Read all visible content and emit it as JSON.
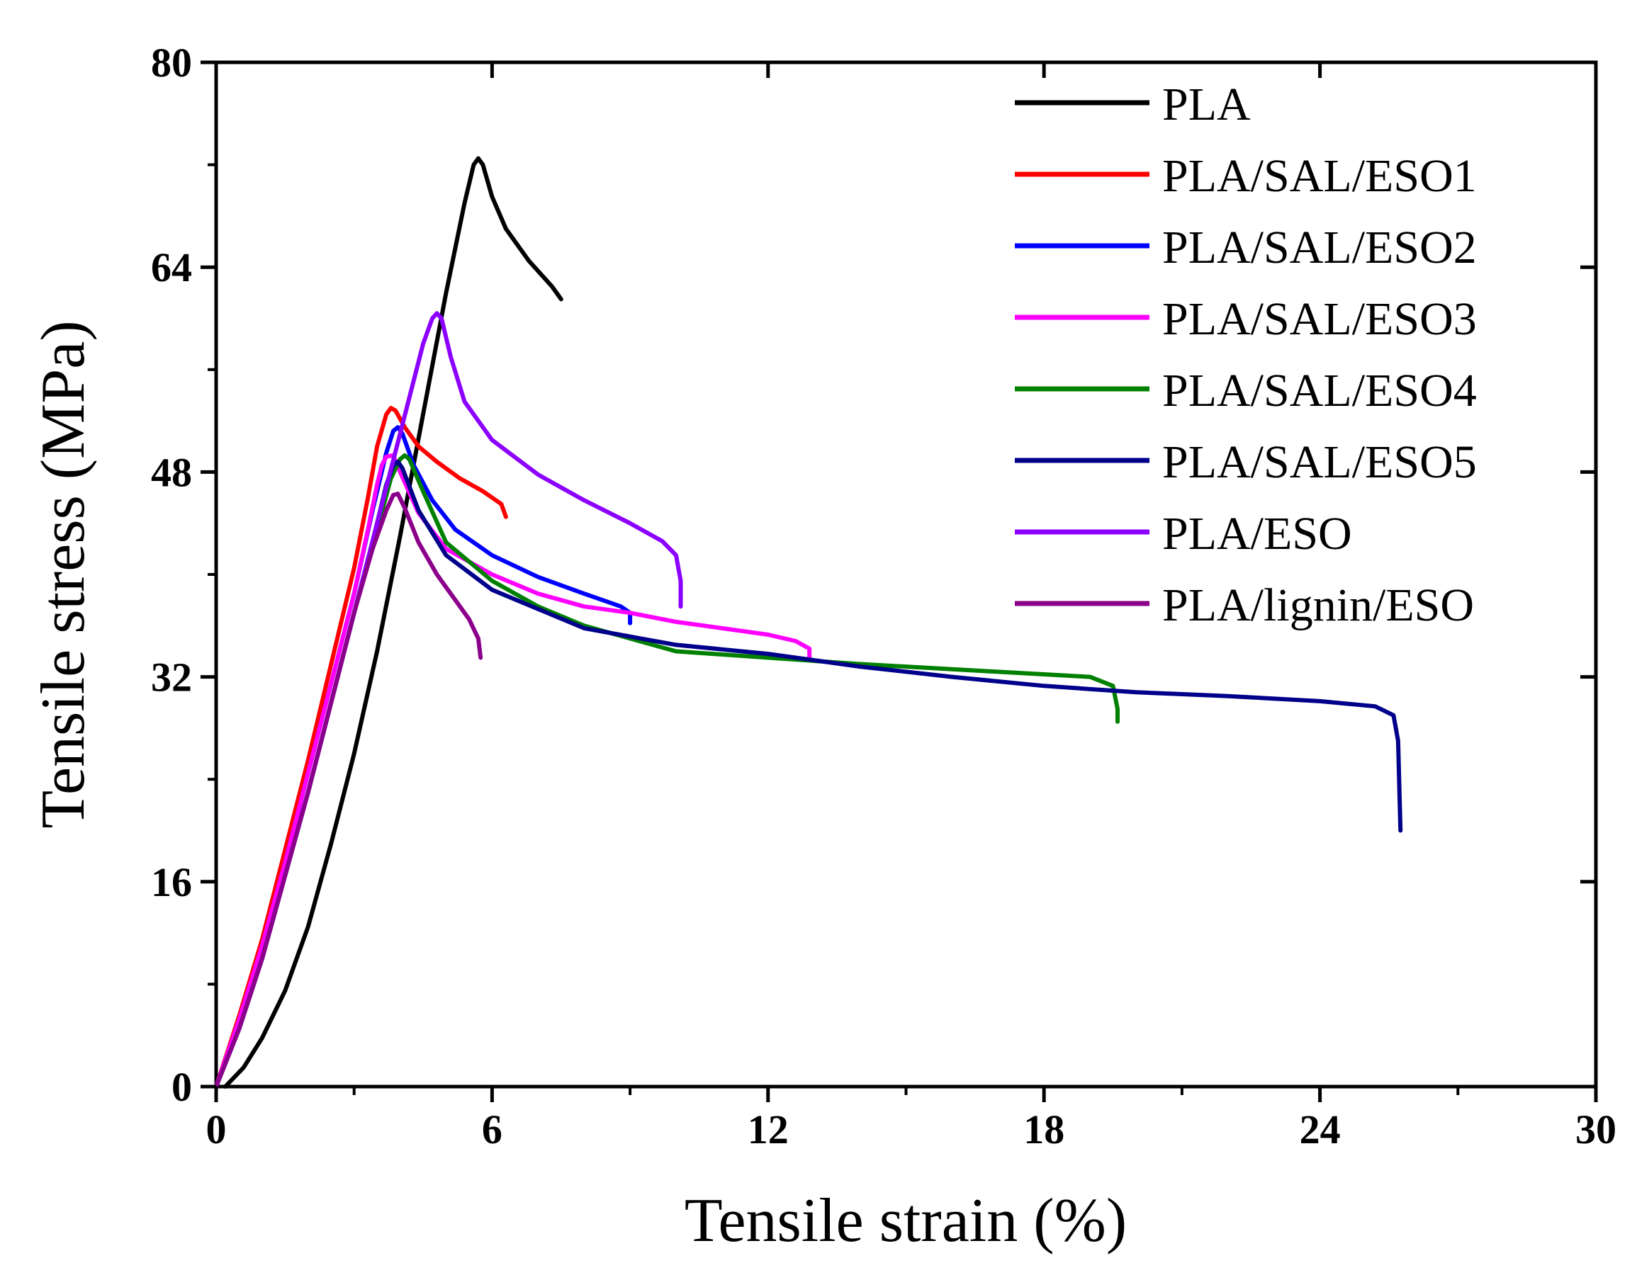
{
  "chart_data": {
    "type": "line",
    "title": "",
    "xlabel": "Tensile strain (%)",
    "ylabel": "Tensile stress (MPa)",
    "xlim": [
      0,
      30
    ],
    "ylim": [
      0,
      80
    ],
    "x_ticks": [
      0,
      6,
      12,
      18,
      24,
      30
    ],
    "y_ticks": [
      0,
      16,
      32,
      48,
      64,
      80
    ],
    "x_tick_labels": [
      "0",
      "6",
      "12",
      "18",
      "24",
      "30"
    ],
    "y_tick_labels": [
      "0",
      "16",
      "32",
      "48",
      "64",
      "80"
    ],
    "grid": false,
    "legend_position": "top-right",
    "series": [
      {
        "name": "PLA",
        "color": "#000000",
        "points": [
          [
            0.2,
            0
          ],
          [
            0.6,
            1.5
          ],
          [
            1.0,
            3.8
          ],
          [
            1.5,
            7.5
          ],
          [
            2.0,
            12.5
          ],
          [
            2.5,
            19
          ],
          [
            3.0,
            26
          ],
          [
            3.5,
            34
          ],
          [
            4.0,
            43
          ],
          [
            4.5,
            52.5
          ],
          [
            5.0,
            62
          ],
          [
            5.4,
            69
          ],
          [
            5.6,
            72
          ],
          [
            5.7,
            72.5
          ],
          [
            5.8,
            72
          ],
          [
            6.0,
            69.5
          ],
          [
            6.3,
            67
          ],
          [
            6.8,
            64.5
          ],
          [
            7.3,
            62.5
          ],
          [
            7.5,
            61.5
          ]
        ]
      },
      {
        "name": "PLA/SAL/ESO1",
        "color": "#ff0000",
        "points": [
          [
            0,
            0
          ],
          [
            0.5,
            5.5
          ],
          [
            1.0,
            11.5
          ],
          [
            1.5,
            18.5
          ],
          [
            2.0,
            25.5
          ],
          [
            2.5,
            33
          ],
          [
            3.0,
            40.5
          ],
          [
            3.3,
            46
          ],
          [
            3.5,
            50
          ],
          [
            3.7,
            52.5
          ],
          [
            3.8,
            53
          ],
          [
            3.9,
            52.8
          ],
          [
            4.1,
            51.5
          ],
          [
            4.4,
            50
          ],
          [
            4.8,
            48.8
          ],
          [
            5.3,
            47.5
          ],
          [
            5.8,
            46.5
          ],
          [
            6.2,
            45.5
          ],
          [
            6.3,
            44.5
          ]
        ]
      },
      {
        "name": "PLA/SAL/ESO2",
        "color": "#0000ff",
        "points": [
          [
            0,
            0
          ],
          [
            0.5,
            5
          ],
          [
            1.0,
            11
          ],
          [
            1.5,
            17.5
          ],
          [
            2.0,
            24.5
          ],
          [
            2.5,
            31.5
          ],
          [
            3.0,
            38.5
          ],
          [
            3.4,
            45
          ],
          [
            3.7,
            49.5
          ],
          [
            3.85,
            51.2
          ],
          [
            3.95,
            51.5
          ],
          [
            4.05,
            51
          ],
          [
            4.3,
            48.5
          ],
          [
            4.7,
            45.8
          ],
          [
            5.2,
            43.5
          ],
          [
            6.0,
            41.5
          ],
          [
            7.0,
            39.8
          ],
          [
            8.0,
            38.5
          ],
          [
            8.8,
            37.5
          ],
          [
            9.0,
            37
          ],
          [
            9.0,
            36.2
          ]
        ]
      },
      {
        "name": "PLA/SAL/ESO3",
        "color": "#ff00ff",
        "points": [
          [
            0,
            0
          ],
          [
            0.5,
            5.2
          ],
          [
            1.0,
            11
          ],
          [
            1.5,
            17.5
          ],
          [
            2.0,
            24.5
          ],
          [
            2.5,
            31.5
          ],
          [
            3.0,
            38.5
          ],
          [
            3.3,
            43.5
          ],
          [
            3.5,
            47
          ],
          [
            3.6,
            48.5
          ],
          [
            3.7,
            49.2
          ],
          [
            3.85,
            49.3
          ],
          [
            4.0,
            48
          ],
          [
            4.4,
            44.8
          ],
          [
            5.0,
            42
          ],
          [
            6.0,
            40
          ],
          [
            7.0,
            38.5
          ],
          [
            8.0,
            37.5
          ],
          [
            9.0,
            37
          ],
          [
            10.0,
            36.3
          ],
          [
            11.0,
            35.8
          ],
          [
            12.0,
            35.3
          ],
          [
            12.6,
            34.8
          ],
          [
            12.9,
            34.2
          ],
          [
            12.9,
            33.5
          ]
        ]
      },
      {
        "name": "PLA/SAL/ESO4",
        "color": "#008000",
        "points": [
          [
            0,
            0
          ],
          [
            0.5,
            4.5
          ],
          [
            1.0,
            10
          ],
          [
            1.5,
            16.5
          ],
          [
            2.0,
            23
          ],
          [
            2.5,
            30
          ],
          [
            3.0,
            37
          ],
          [
            3.5,
            43.5
          ],
          [
            3.8,
            47.5
          ],
          [
            4.0,
            49
          ],
          [
            4.1,
            49.3
          ],
          [
            4.2,
            49
          ],
          [
            4.5,
            46.5
          ],
          [
            5.0,
            42.5
          ],
          [
            6.0,
            39.5
          ],
          [
            7.0,
            37.5
          ],
          [
            8.0,
            36
          ],
          [
            10.0,
            34
          ],
          [
            12.0,
            33.5
          ],
          [
            14.0,
            33
          ],
          [
            16.0,
            32.6
          ],
          [
            18.0,
            32.2
          ],
          [
            19.0,
            32
          ],
          [
            19.5,
            31.3
          ],
          [
            19.6,
            29.5
          ],
          [
            19.6,
            28.5
          ]
        ]
      },
      {
        "name": "PLA/SAL/ESO5",
        "color": "#00008b",
        "points": [
          [
            0,
            0
          ],
          [
            0.5,
            4.5
          ],
          [
            1.0,
            10
          ],
          [
            1.5,
            16.5
          ],
          [
            2.0,
            23
          ],
          [
            2.5,
            30
          ],
          [
            3.0,
            37
          ],
          [
            3.4,
            42.5
          ],
          [
            3.7,
            47
          ],
          [
            3.85,
            48.5
          ],
          [
            3.95,
            48.8
          ],
          [
            4.05,
            48.3
          ],
          [
            4.4,
            45
          ],
          [
            5.0,
            41.5
          ],
          [
            6.0,
            38.8
          ],
          [
            8.0,
            35.8
          ],
          [
            10.0,
            34.5
          ],
          [
            12.0,
            33.8
          ],
          [
            14.0,
            32.8
          ],
          [
            16.0,
            32
          ],
          [
            18.0,
            31.3
          ],
          [
            20.0,
            30.8
          ],
          [
            22.0,
            30.5
          ],
          [
            24.0,
            30.1
          ],
          [
            25.2,
            29.7
          ],
          [
            25.6,
            29
          ],
          [
            25.7,
            27
          ],
          [
            25.75,
            20
          ]
        ]
      },
      {
        "name": "PLA/ESO",
        "color": "#8b00ff",
        "points": [
          [
            0,
            0
          ],
          [
            0.5,
            4.5
          ],
          [
            1.0,
            10
          ],
          [
            1.5,
            16.5
          ],
          [
            2.0,
            23
          ],
          [
            2.5,
            30
          ],
          [
            3.0,
            37
          ],
          [
            3.5,
            44
          ],
          [
            4.0,
            51
          ],
          [
            4.5,
            58
          ],
          [
            4.7,
            60
          ],
          [
            4.8,
            60.4
          ],
          [
            4.9,
            60
          ],
          [
            5.1,
            57
          ],
          [
            5.4,
            53.5
          ],
          [
            6.0,
            50.5
          ],
          [
            7.0,
            47.8
          ],
          [
            8.0,
            45.8
          ],
          [
            9.0,
            44
          ],
          [
            9.7,
            42.6
          ],
          [
            10.0,
            41.5
          ],
          [
            10.1,
            39.5
          ],
          [
            10.1,
            37.5
          ]
        ]
      },
      {
        "name": "PLA/lignin/ESO",
        "color": "#8b008b",
        "points": [
          [
            0,
            0
          ],
          [
            0.5,
            4.5
          ],
          [
            1.0,
            10
          ],
          [
            1.5,
            16.5
          ],
          [
            2.0,
            23
          ],
          [
            2.5,
            30
          ],
          [
            3.0,
            37
          ],
          [
            3.4,
            42
          ],
          [
            3.7,
            45
          ],
          [
            3.85,
            46.2
          ],
          [
            3.95,
            46.3
          ],
          [
            4.1,
            45.2
          ],
          [
            4.4,
            42.5
          ],
          [
            4.8,
            40
          ],
          [
            5.2,
            38
          ],
          [
            5.5,
            36.5
          ],
          [
            5.7,
            35
          ],
          [
            5.75,
            33.5
          ]
        ]
      }
    ]
  }
}
